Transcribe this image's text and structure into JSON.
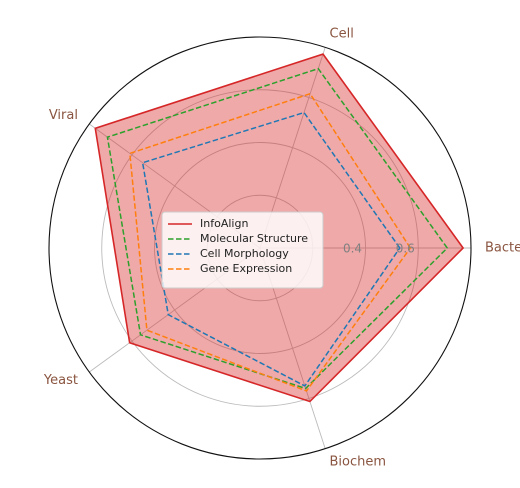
{
  "chart_data": {
    "type": "radar",
    "categories": [
      "Bacterial",
      "Cell",
      "Viral",
      "Yeast",
      "Biochem"
    ],
    "r_ticks": [
      0.4,
      0.6
    ],
    "r_max": 0.8,
    "grid": true,
    "legend_position": "center",
    "series": [
      {
        "name": "InfoAlign",
        "values": [
          0.77,
          0.773,
          0.772,
          0.611,
          0.612
        ],
        "color": "#d62728",
        "dash": "solid",
        "fill": true
      },
      {
        "name": "Molecular Structure",
        "values": [
          0.71,
          0.715,
          0.715,
          0.56,
          0.56
        ],
        "color": "#2ca02c",
        "dash": "dashed",
        "fill": false
      },
      {
        "name": "Cell Morphology",
        "values": [
          0.53,
          0.54,
          0.55,
          0.43,
          0.55
        ],
        "color": "#1f77b4",
        "dash": "dashed",
        "fill": false
      },
      {
        "name": "Gene Expression",
        "values": [
          0.57,
          0.615,
          0.61,
          0.53,
          0.57
        ],
        "color": "#ff7f0e",
        "dash": "dashed",
        "fill": false
      }
    ]
  }
}
